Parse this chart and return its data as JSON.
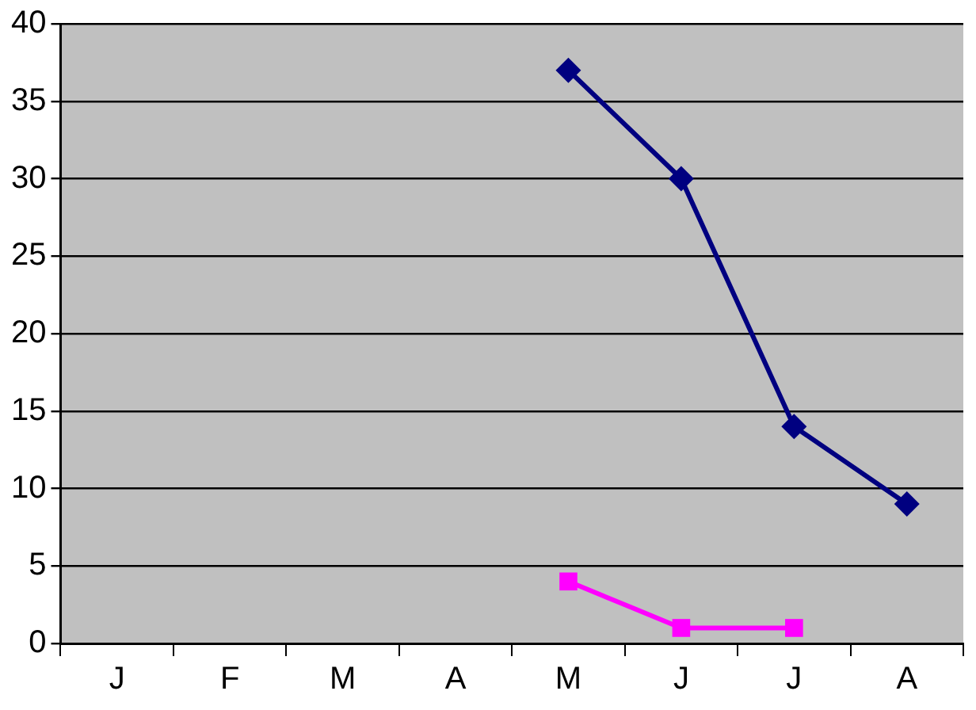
{
  "chart_data": {
    "type": "line",
    "categories": [
      "J",
      "F",
      "M",
      "A",
      "M",
      "J",
      "J",
      "A"
    ],
    "series": [
      {
        "color": "#000080",
        "marker": "diamond",
        "values": [
          null,
          null,
          null,
          null,
          37,
          30,
          14,
          9
        ]
      },
      {
        "color": "#ff00ff",
        "marker": "square",
        "values": [
          null,
          null,
          null,
          null,
          4,
          1,
          1,
          null
        ]
      }
    ],
    "ylim": [
      0,
      40
    ],
    "yticks": [
      0,
      5,
      10,
      15,
      20,
      25,
      30,
      35,
      40
    ],
    "grid": "y",
    "legend": false
  }
}
